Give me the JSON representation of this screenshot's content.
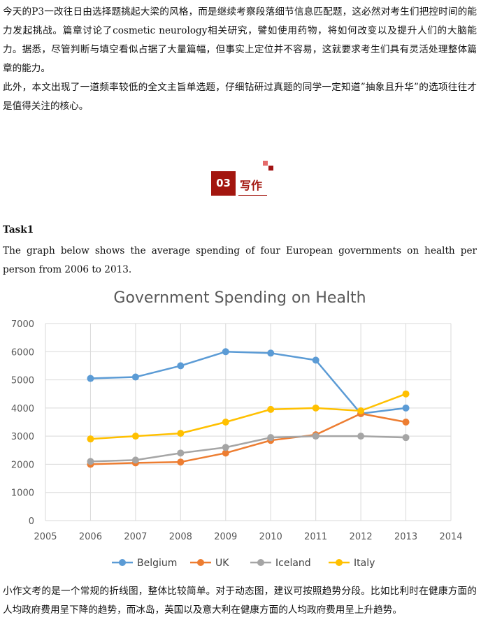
{
  "intro": {
    "para1": "今天的P3一改往日由选择题挑起大梁的风格，而是继续考察段落细节信息匹配题，这必然对考生们把控时间的能力发起挑战。篇章讨论了cosmetic neurology相关研究，譬如使用药物，将如何改变以及提升人们的大脑能力。据悉，尽管判断与填空看似占据了大量篇幅，但事实上定位并不容易，这就要求考生们具有灵活处理整体篇章的能力。",
    "para2": "此外，本文出现了一道频率较低的全文主旨单选题，仔细钻研过真题的同学一定知道”抽象且升华”的选项往往才是值得关注的核心。"
  },
  "section": {
    "number": "03",
    "title": "写作"
  },
  "task": {
    "heading": "Task1",
    "prompt": "The graph below shows the average spending of four European governments on health per person from 2006 to 2013."
  },
  "chart_data": {
    "type": "line",
    "title": "Government Spending on Health",
    "xlabel": "",
    "ylabel": "",
    "x_ticks": [
      2005,
      2006,
      2007,
      2008,
      2009,
      2010,
      2011,
      2012,
      2013,
      2014
    ],
    "y_ticks": [
      0,
      1000,
      2000,
      3000,
      4000,
      5000,
      6000,
      7000
    ],
    "xlim": [
      2005,
      2014
    ],
    "ylim": [
      0,
      7000
    ],
    "grid": true,
    "legend_position": "bottom",
    "x": [
      2006,
      2007,
      2008,
      2009,
      2010,
      2011,
      2012,
      2013
    ],
    "series": [
      {
        "name": "Belgium",
        "color": "#5b9bd5",
        "values": [
          5050,
          5100,
          5500,
          6000,
          5950,
          5700,
          3800,
          4000
        ]
      },
      {
        "name": "UK",
        "color": "#ed7d31",
        "values": [
          2000,
          2050,
          2080,
          2400,
          2850,
          3050,
          3800,
          3500
        ]
      },
      {
        "name": "Iceland",
        "color": "#a5a5a5",
        "values": [
          2100,
          2150,
          2400,
          2600,
          2950,
          3000,
          3000,
          2950
        ]
      },
      {
        "name": "Italy",
        "color": "#ffc000",
        "values": [
          2900,
          3000,
          3100,
          3500,
          3950,
          4000,
          3900,
          4500
        ]
      }
    ]
  },
  "outro": {
    "para": "小作文考的是一个常规的折线图，整体比较简单。对于动态图，建议可按照趋势分段。比如比利时在健康方面的人均政府费用呈下降的趋势，而冰岛，英国以及意大利在健康方面的人均政府费用呈上升趋势。"
  }
}
